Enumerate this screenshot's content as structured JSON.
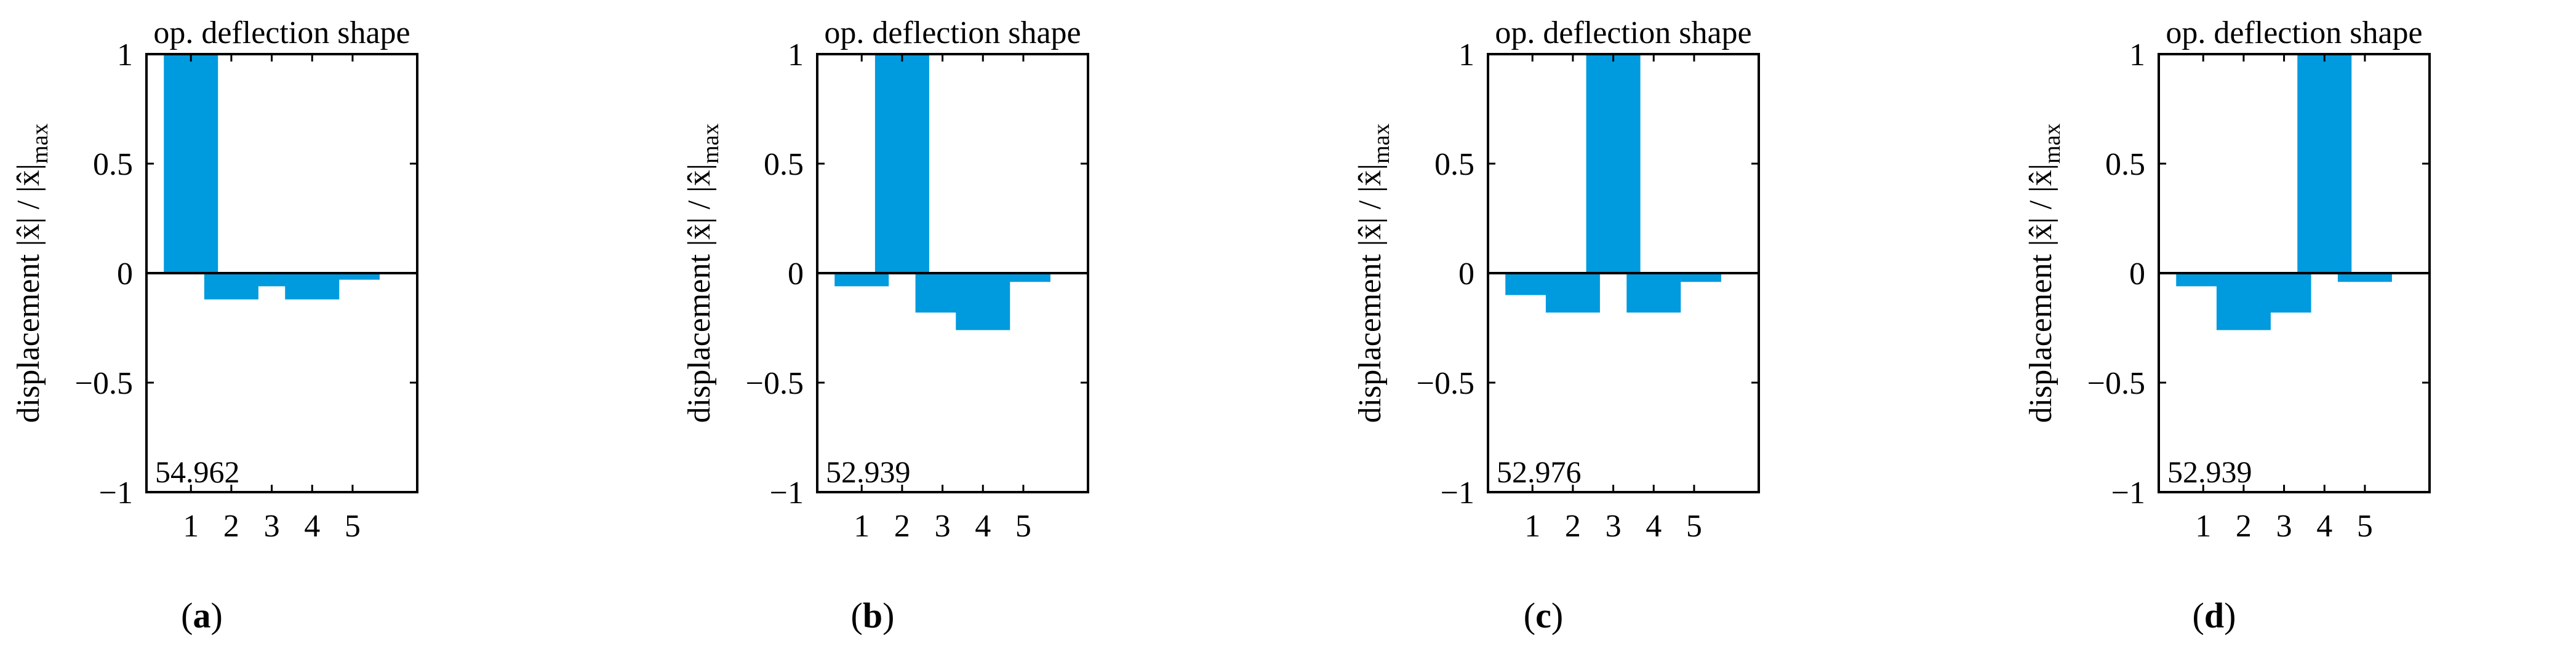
{
  "bar_color": "#009ADE",
  "chart_data": [
    {
      "type": "bar",
      "title": "op. deflection shape",
      "xlabel": "",
      "ylabel": "displacement |x̂| / |x̂|max",
      "ylabel_main": "displacement |x̂| / |x̂|",
      "ylabel_sub": "max",
      "categories": [
        "1",
        "2",
        "3",
        "4",
        "5"
      ],
      "values": [
        1.0,
        -0.12,
        -0.06,
        -0.12,
        -0.03
      ],
      "ylim": [
        -1,
        1
      ],
      "yticks": [
        -1,
        -0.5,
        0,
        0.5,
        1
      ],
      "ytick_labels": [
        "−1",
        "−0.5",
        "0",
        "0.5",
        "1"
      ],
      "annotation": "54.962",
      "caption_letter": "a"
    },
    {
      "type": "bar",
      "title": "op. deflection shape",
      "xlabel": "",
      "ylabel": "displacement |x̂| / |x̂|max",
      "ylabel_main": "displacement |x̂| / |x̂|",
      "ylabel_sub": "max",
      "categories": [
        "1",
        "2",
        "3",
        "4",
        "5"
      ],
      "values": [
        -0.06,
        1.0,
        -0.18,
        -0.26,
        -0.04
      ],
      "ylim": [
        -1,
        1
      ],
      "yticks": [
        -1,
        -0.5,
        0,
        0.5,
        1
      ],
      "ytick_labels": [
        "−1",
        "−0.5",
        "0",
        "0.5",
        "1"
      ],
      "annotation": "52.939",
      "caption_letter": "b"
    },
    {
      "type": "bar",
      "title": "op. deflection shape",
      "xlabel": "",
      "ylabel": "displacement |x̂| / |x̂|max",
      "ylabel_main": "displacement |x̂| / |x̂|",
      "ylabel_sub": "max",
      "categories": [
        "1",
        "2",
        "3",
        "4",
        "5"
      ],
      "values": [
        -0.1,
        -0.18,
        1.0,
        -0.18,
        -0.04
      ],
      "ylim": [
        -1,
        1
      ],
      "yticks": [
        -1,
        -0.5,
        0,
        0.5,
        1
      ],
      "ytick_labels": [
        "−1",
        "−0.5",
        "0",
        "0.5",
        "1"
      ],
      "annotation": "52.976",
      "caption_letter": "c"
    },
    {
      "type": "bar",
      "title": "op. deflection shape",
      "xlabel": "",
      "ylabel": "displacement |x̂| / |x̂|max",
      "ylabel_main": "displacement |x̂| / |x̂|",
      "ylabel_sub": "max",
      "categories": [
        "1",
        "2",
        "3",
        "4",
        "5"
      ],
      "values": [
        -0.06,
        -0.26,
        -0.18,
        1.0,
        -0.04
      ],
      "ylim": [
        -1,
        1
      ],
      "yticks": [
        -1,
        -0.5,
        0,
        0.5,
        1
      ],
      "ytick_labels": [
        "−1",
        "−0.5",
        "0",
        "0.5",
        "1"
      ],
      "annotation": "52.939",
      "caption_letter": "d"
    }
  ]
}
